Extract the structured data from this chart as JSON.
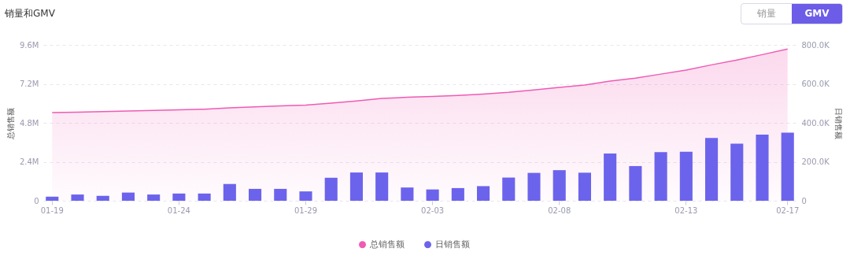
{
  "chart_data": {
    "type": "bar",
    "title": "销量和GMV",
    "annotations": [
      "销量",
      "GMV"
    ],
    "ylabel": "总销售额",
    "y2label": "日销售额",
    "categories": [
      "01-19",
      null,
      null,
      null,
      null,
      "01-24",
      null,
      null,
      null,
      null,
      "01-29",
      null,
      null,
      null,
      null,
      "02-03",
      null,
      null,
      null,
      null,
      "02-08",
      null,
      null,
      null,
      null,
      "02-13",
      null,
      null,
      null,
      "02-17"
    ],
    "series": [
      {
        "name": "总销售额",
        "type": "area",
        "color": "#ef5bb3",
        "axis": "y",
        "values": [
          5430000,
          5460000,
          5490000,
          5530000,
          5560000,
          5600000,
          5640000,
          5720000,
          5780000,
          5840000,
          5890000,
          6010000,
          6150000,
          6300000,
          6370000,
          6430000,
          6490000,
          6570000,
          6680000,
          6830000,
          6980000,
          7130000,
          7370000,
          7550000,
          7800000,
          8050000,
          8370000,
          8670000,
          9000000,
          9350000
        ]
      },
      {
        "name": "日销售额",
        "color": "#6c63ec",
        "axis": "y2",
        "values": [
          21000,
          32000,
          25000,
          42000,
          32000,
          37000,
          37000,
          86000,
          61000,
          61000,
          48000,
          118000,
          145000,
          145000,
          68000,
          58000,
          65000,
          75000,
          119000,
          143000,
          157000,
          144000,
          242000,
          178000,
          250000,
          252000,
          322000,
          293000,
          339000,
          349000
        ]
      }
    ],
    "ylim": [
      0,
      9600000
    ],
    "yticks": [
      0,
      {
        "value": 2400000,
        "label": "2.4M"
      },
      {
        "value": 4800000,
        "label": "4.8M"
      },
      {
        "value": 7200000,
        "label": "7.2M"
      },
      {
        "value": 9600000,
        "label": "9.6M"
      }
    ],
    "y2lim": [
      0,
      800000
    ],
    "y2ticks": [
      0,
      {
        "value": 200000,
        "label": "200.0K"
      },
      {
        "value": 400000,
        "label": "400.0K"
      },
      {
        "value": 600000,
        "label": "600.0K"
      },
      {
        "value": 800000,
        "label": "800.0K"
      }
    ],
    "grid": "y",
    "legend": "bottom",
    "marker": "none"
  }
}
